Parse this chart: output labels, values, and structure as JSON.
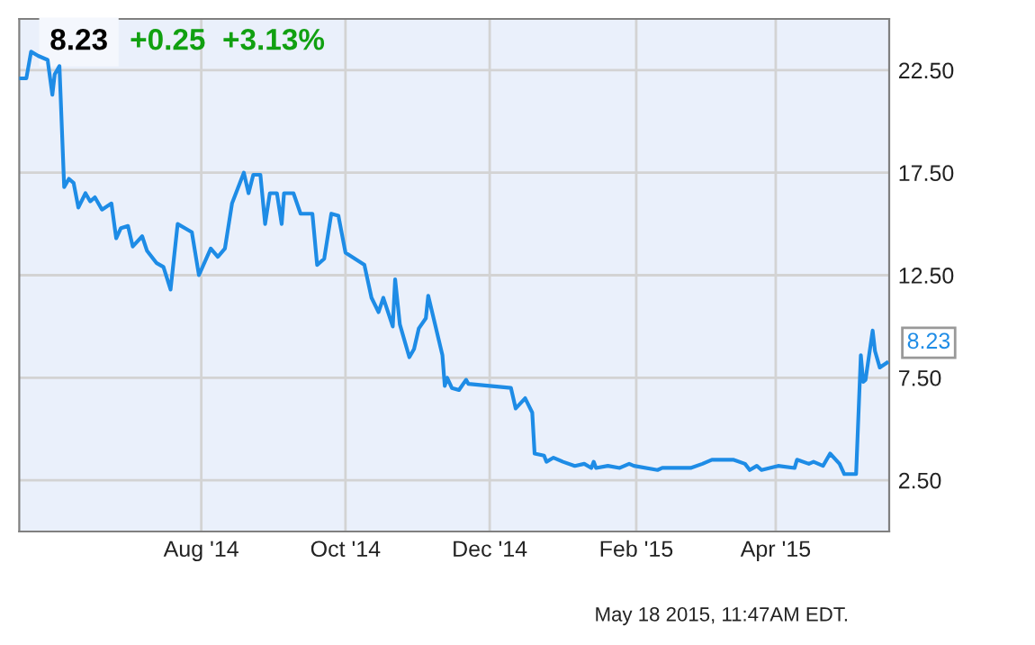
{
  "chart_data": {
    "type": "line",
    "title": "8.23",
    "subtitle": "+0.25  +3.13%",
    "annotations": [
      "May 18 2015, 11:47AM EDT."
    ],
    "x": [
      "2014-05-16",
      "2014-05-19",
      "2014-05-21",
      "2014-05-24",
      "2014-05-28",
      "2014-05-30",
      "2014-05-31",
      "2014-06-02",
      "2014-06-04",
      "2014-06-06",
      "2014-06-08",
      "2014-06-10",
      "2014-06-13",
      "2014-06-15",
      "2014-06-17",
      "2014-06-20",
      "2014-06-24",
      "2014-06-26",
      "2014-06-28",
      "2014-07-01",
      "2014-07-03",
      "2014-07-07",
      "2014-07-09",
      "2014-07-13",
      "2014-07-16",
      "2014-07-19",
      "2014-07-22",
      "2014-07-28",
      "2014-07-31",
      "2014-08-05",
      "2014-08-08",
      "2014-08-11",
      "2014-08-14",
      "2014-08-19",
      "2014-08-21",
      "2014-08-23",
      "2014-08-26",
      "2014-08-28",
      "2014-08-30",
      "2014-09-02",
      "2014-09-04",
      "2014-09-05",
      "2014-09-09",
      "2014-09-12",
      "2014-09-17",
      "2014-09-19",
      "2014-09-22",
      "2014-09-25",
      "2014-09-28",
      "2014-10-01",
      "2014-10-05",
      "2014-10-09",
      "2014-10-12",
      "2014-10-15",
      "2014-10-17",
      "2014-10-21",
      "2014-10-22",
      "2014-10-24",
      "2014-10-28",
      "2014-10-30",
      "2014-11-01",
      "2014-11-04",
      "2014-11-05",
      "2014-11-11",
      "2014-11-12",
      "2014-11-13",
      "2014-11-15",
      "2014-11-18",
      "2014-11-21",
      "2014-11-22",
      "2014-12-10",
      "2014-12-12",
      "2014-12-16",
      "2014-12-19",
      "2014-12-20",
      "2014-12-24",
      "2014-12-25",
      "2014-12-28",
      "2015-01-01",
      "2015-01-06",
      "2015-01-10",
      "2015-01-13",
      "2015-01-14",
      "2015-01-15",
      "2015-01-20",
      "2015-01-25",
      "2015-01-29",
      "2015-01-31",
      "2015-02-10",
      "2015-02-12",
      "2015-02-24",
      "2015-03-01",
      "2015-03-05",
      "2015-03-14",
      "2015-03-19",
      "2015-03-21",
      "2015-03-24",
      "2015-03-26",
      "2015-04-02",
      "2015-04-09",
      "2015-04-10",
      "2015-04-15",
      "2015-04-17",
      "2015-04-21",
      "2015-04-24",
      "2015-04-28",
      "2015-04-30",
      "2015-05-05",
      "2015-05-07",
      "2015-05-08",
      "2015-05-09",
      "2015-05-12",
      "2015-05-13",
      "2015-05-15",
      "2015-05-18"
    ],
    "series": [
      {
        "color": "#1e8ce6",
        "values": [
          22.1,
          22.1,
          23.4,
          23.2,
          23.0,
          21.3,
          22.3,
          22.7,
          16.8,
          17.2,
          17.0,
          15.8,
          16.5,
          16.1,
          16.3,
          15.7,
          16.0,
          14.3,
          14.8,
          14.9,
          13.9,
          14.4,
          13.7,
          13.1,
          12.9,
          11.8,
          15.0,
          14.6,
          12.5,
          13.8,
          13.4,
          13.8,
          16.0,
          17.5,
          16.5,
          17.4,
          17.4,
          15.0,
          16.5,
          16.5,
          15.0,
          16.5,
          16.5,
          15.5,
          15.5,
          13.0,
          13.3,
          15.5,
          15.4,
          13.6,
          13.3,
          13.0,
          11.4,
          10.7,
          11.4,
          10.0,
          12.3,
          10.1,
          8.5,
          8.9,
          9.9,
          10.4,
          11.5,
          8.6,
          7.1,
          7.5,
          7.0,
          6.9,
          7.4,
          7.2,
          7.0,
          6.0,
          6.5,
          5.8,
          3.8,
          3.7,
          3.4,
          3.6,
          3.4,
          3.2,
          3.3,
          3.1,
          3.4,
          3.1,
          3.2,
          3.1,
          3.3,
          3.2,
          3.0,
          3.1,
          3.1,
          3.3,
          3.5,
          3.5,
          3.3,
          3.0,
          3.2,
          3.0,
          3.2,
          3.1,
          3.5,
          3.3,
          3.4,
          3.2,
          3.8,
          3.3,
          2.8,
          2.8,
          8.6,
          7.3,
          7.4,
          9.8,
          8.8,
          8.0,
          8.23
        ],
        "value_labels": [
          null,
          null,
          null,
          null,
          null,
          null,
          null,
          null,
          null,
          null,
          null,
          null,
          null,
          null,
          null,
          null,
          null,
          null,
          null,
          null,
          null,
          null,
          null,
          null,
          null,
          null,
          null,
          null,
          null,
          null,
          null,
          null,
          null,
          null,
          null,
          null,
          null,
          null,
          null,
          null,
          null,
          null,
          null,
          null,
          null,
          null,
          null,
          null,
          null,
          null,
          null,
          null,
          null,
          null,
          null,
          null,
          null,
          null,
          null,
          null,
          null,
          null,
          null,
          null,
          null,
          null,
          null,
          null,
          null,
          null,
          null,
          null,
          null,
          null,
          null,
          null,
          null,
          null,
          null,
          null,
          null,
          null,
          null,
          null,
          null,
          null,
          null,
          null,
          null,
          null,
          null,
          null,
          null,
          null,
          null,
          null,
          null,
          null,
          null,
          null,
          null,
          null,
          null,
          null,
          null,
          null,
          null,
          null,
          null,
          null,
          null,
          null,
          null,
          null,
          "8.23"
        ]
      }
    ],
    "xlim": [
      "2014-05-16",
      "2015-05-19"
    ],
    "xticks": [
      {
        "value": "2014-08-01",
        "label": "Aug '14"
      },
      {
        "value": "2014-10-01",
        "label": "Oct '14"
      },
      {
        "value": "2014-12-01",
        "label": "Dec '14"
      },
      {
        "value": "2015-02-01",
        "label": "Feb '15"
      },
      {
        "value": "2015-04-01",
        "label": "Apr '15"
      }
    ],
    "ylim": [
      0,
      25
    ],
    "yticks": [
      {
        "value": 2.5,
        "label": "2.50"
      },
      {
        "value": 7.5,
        "label": "7.50"
      },
      {
        "value": 12.5,
        "label": "12.50"
      },
      {
        "value": 17.5,
        "label": "17.50"
      },
      {
        "value": 22.5,
        "label": "22.50"
      }
    ],
    "grid": true,
    "legend": false,
    "marker": "none",
    "line_style": "solid"
  }
}
